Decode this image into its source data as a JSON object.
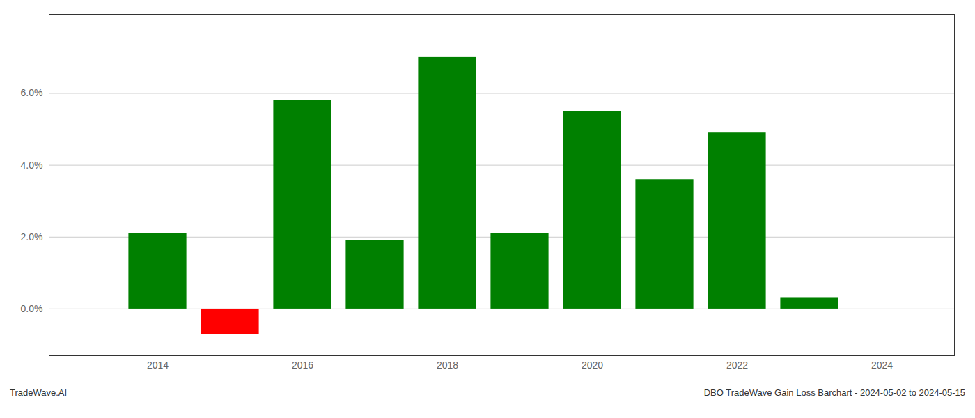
{
  "chart_data": {
    "type": "bar",
    "x": [
      2014,
      2015,
      2016,
      2017,
      2018,
      2019,
      2020,
      2021,
      2022,
      2023
    ],
    "values": [
      0.021,
      -0.007,
      0.058,
      0.019,
      0.07,
      0.021,
      0.055,
      0.036,
      0.049,
      0.003
    ],
    "colors": [
      "#008000",
      "#ff0000",
      "#008000",
      "#008000",
      "#008000",
      "#008000",
      "#008000",
      "#008000",
      "#008000",
      "#008000"
    ],
    "xlim": [
      2012.5,
      2025.0
    ],
    "ylim": [
      -0.013,
      0.082
    ],
    "xticks": [
      2014,
      2016,
      2018,
      2020,
      2022,
      2024
    ],
    "yticks": [
      {
        "value": 0.0,
        "label": "0.0%"
      },
      {
        "value": 0.02,
        "label": "2.0%"
      },
      {
        "value": 0.04,
        "label": "4.0%"
      },
      {
        "value": 0.06,
        "label": "6.0%"
      }
    ],
    "grid": "y",
    "annotations": [
      "TradeWave.AI",
      "DBO TradeWave Gain Loss Barchart - 2024-05-02 to 2024-05-15"
    ]
  }
}
